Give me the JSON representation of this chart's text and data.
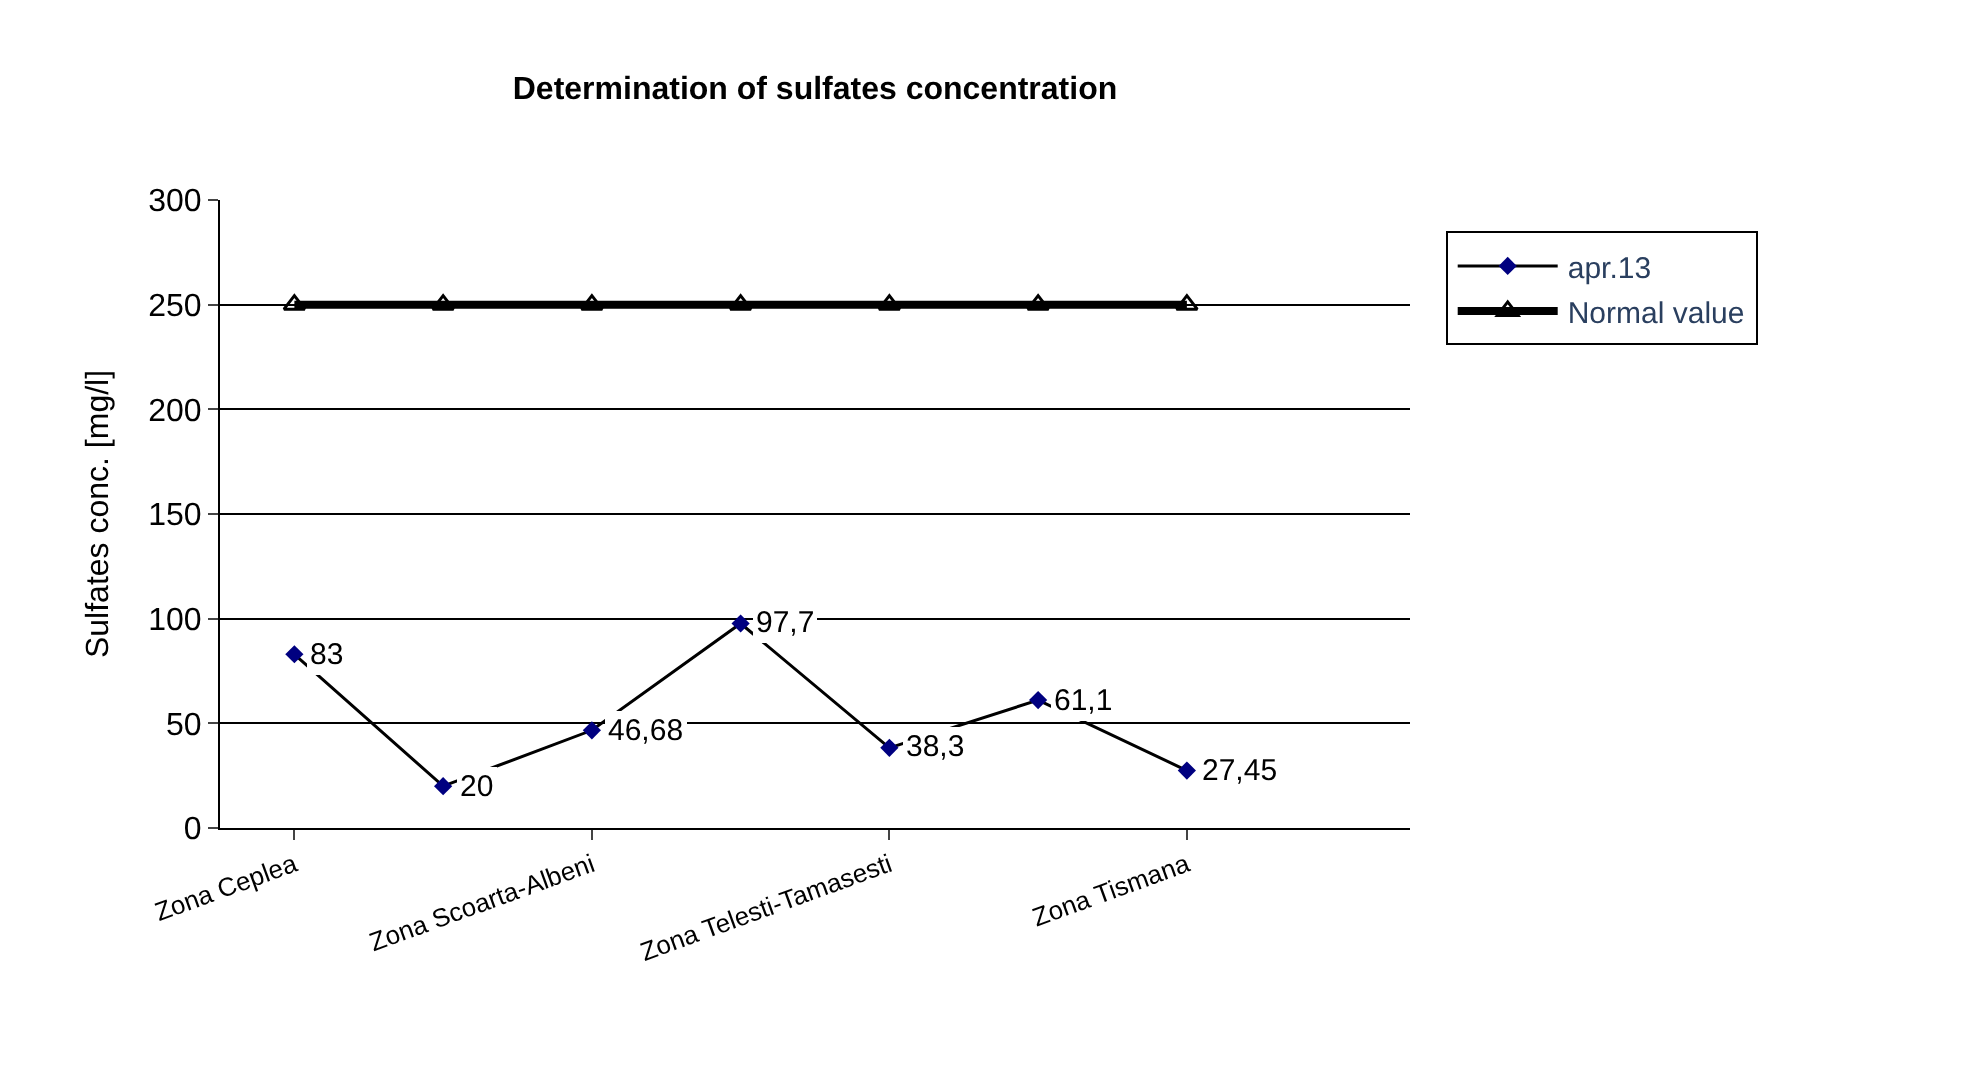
{
  "chart_data": {
    "type": "line",
    "title": "Determination of sulfates concentration",
    "ylabel": "Sulfates conc. [mg/l]",
    "categories": [
      "Zona Ceplea",
      null,
      "Zona Scoarta-Albeni",
      null,
      "Zona Telesti-Tamasesti",
      null,
      "Zona Tismana",
      null
    ],
    "series": [
      {
        "name": "apr.13",
        "color": "#000080",
        "marker": "diamond",
        "values": [
          83,
          20,
          46.68,
          97.7,
          38.3,
          61.1,
          27.45,
          null
        ],
        "value_labels": [
          "83",
          "20",
          "46,68",
          "97,7",
          "38,3",
          "61,1",
          "27,45",
          null
        ]
      },
      {
        "name": "Normal value",
        "color": "#000000",
        "marker": "triangle",
        "values": [
          250,
          250,
          250,
          250,
          250,
          250,
          250,
          null
        ]
      }
    ],
    "ylim": [
      0,
      300
    ],
    "yticks": [
      0,
      50,
      100,
      150,
      200,
      250,
      300
    ],
    "grid": "y",
    "legend": "right"
  }
}
